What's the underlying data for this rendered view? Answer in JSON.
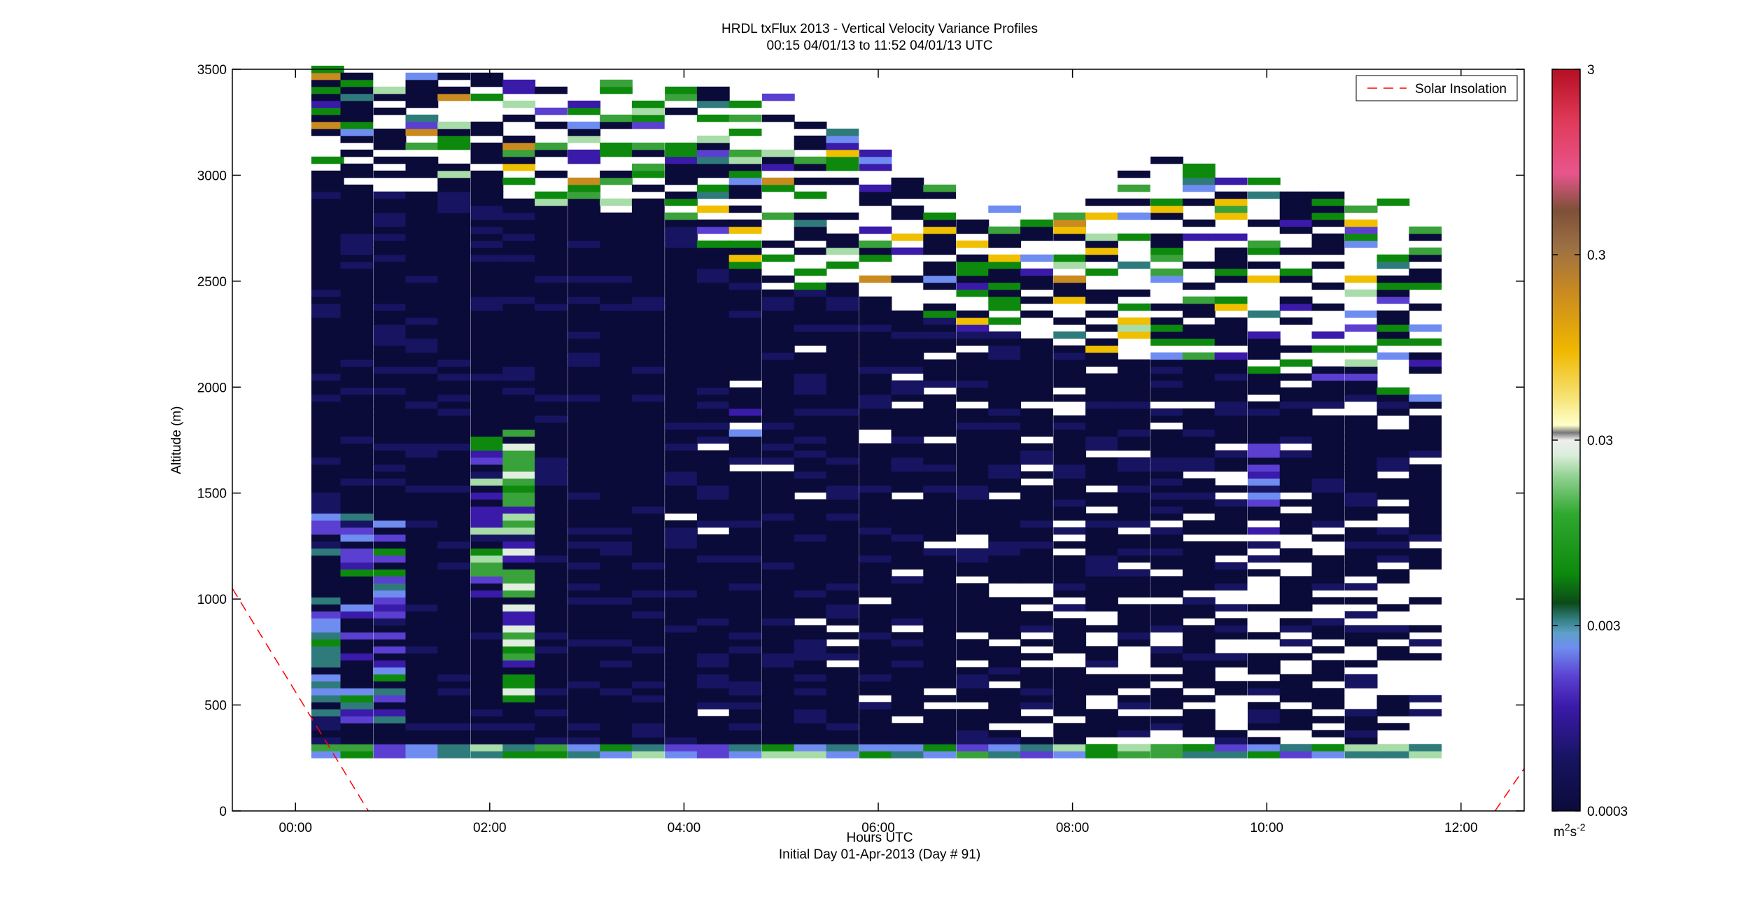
{
  "chart_data": {
    "type": "heatmap",
    "title": "HRDL txFlux 2013 - Vertical Velocity Variance Profiles",
    "subtitle": "00:15 04/01/13 to 11:52 04/01/13  UTC",
    "xlabel": "Hours UTC",
    "xlabel2": "Initial Day 01-Apr-2013 (Day # 91)",
    "ylabel": "Altitude (m)",
    "xlim": [
      -0.65,
      12.65
    ],
    "ylim": [
      0,
      3500
    ],
    "x_ticks": [
      0,
      2,
      4,
      6,
      8,
      10,
      12
    ],
    "x_tick_labels": [
      "00:00",
      "02:00",
      "04:00",
      "06:00",
      "08:00",
      "10:00",
      "12:00"
    ],
    "y_ticks": [
      0,
      500,
      1000,
      1500,
      2000,
      2500,
      3000,
      3500
    ],
    "y_tick_labels": [
      "0",
      "500",
      "1000",
      "1500",
      "2000",
      "2500",
      "3000",
      "3500"
    ],
    "colorbar": {
      "scale": "log",
      "range": [
        0.0003,
        3
      ],
      "ticks": [
        0.0003,
        0.003,
        0.03,
        0.3,
        3
      ],
      "tick_labels": [
        "0.0003",
        "0.003",
        "0.03",
        "0.3",
        "3"
      ],
      "unit_label": "m",
      "unit_exponent": "2",
      "unit_label2": "s",
      "unit_exponent2": "-2"
    },
    "legend": {
      "entries": [
        "Solar Insolation"
      ],
      "placement": "top-right",
      "line_color": "#ff0000",
      "line_style": "dashed"
    },
    "profile_times": [
      0.33,
      0.63,
      0.97,
      1.3,
      1.63,
      1.97,
      2.3,
      2.63,
      2.97,
      3.3,
      3.63,
      3.97,
      4.3,
      4.63,
      4.97,
      5.3,
      5.63,
      5.97,
      6.3,
      6.63,
      6.97,
      7.3,
      7.63,
      7.97,
      8.3,
      8.63,
      8.97,
      9.3,
      9.63,
      9.97,
      10.3,
      10.63,
      10.97,
      11.3,
      11.63
    ],
    "profile_top_m": [
      3500,
      3500,
      3480,
      3470,
      3470,
      3460,
      3440,
      3430,
      3380,
      3450,
      3380,
      3390,
      3400,
      3390,
      3410,
      3260,
      3210,
      3100,
      3040,
      2940,
      2860,
      2850,
      2850,
      2820,
      2860,
      3000,
      3080,
      3040,
      3000,
      2980,
      2960,
      2920,
      2900,
      2860,
      2760
    ],
    "profile_dense_top_m": [
      3000,
      2950,
      2900,
      2880,
      2900,
      2900,
      2880,
      2850,
      2800,
      2800,
      2800,
      2750,
      2650,
      2550,
      2500,
      2450,
      2450,
      2400,
      2350,
      2300,
      2250,
      2250,
      2200,
      2200,
      2150,
      2150,
      2100,
      2100,
      2100,
      2050,
      2050,
      2000,
      2000,
      1950,
      1900
    ],
    "solar_insolation_line": [
      [
        -0.65,
        1050
      ],
      [
        0.75,
        0
      ]
    ],
    "solar_insolation_line2": [
      [
        12.35,
        0
      ],
      [
        12.65,
        200
      ]
    ]
  }
}
